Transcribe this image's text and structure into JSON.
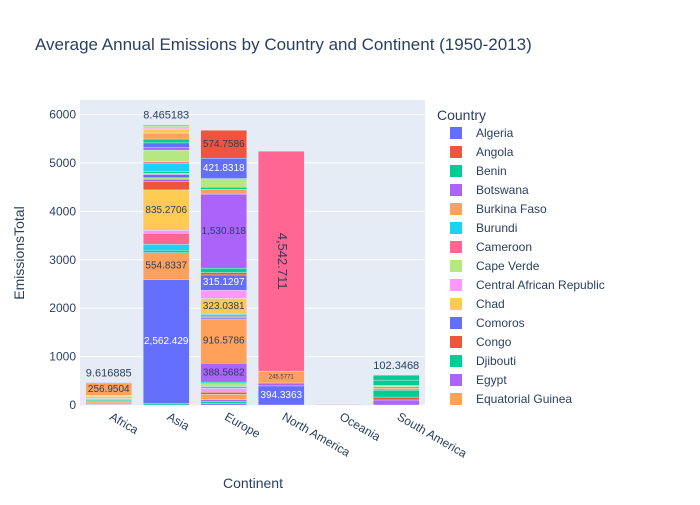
{
  "chart_data": {
    "type": "bar",
    "stacked": true,
    "title": "Average Annual Emissions by Country and Continent (1950-2013)",
    "xlabel": "Continent",
    "ylabel": "EmissionsTotal",
    "categories": [
      "Africa",
      "Asia",
      "Europe",
      "North America",
      "Oceania",
      "South America"
    ],
    "ylim": [
      0,
      6300
    ],
    "yticks": [
      0,
      1000,
      2000,
      3000,
      4000,
      5000,
      6000
    ],
    "ytick_labels": [
      "0",
      "1000",
      "2000",
      "3000",
      "4000",
      "5000",
      "6000"
    ],
    "grid": true,
    "legend_title": "Country",
    "legend_position": "right",
    "legend": [
      {
        "name": "Algeria",
        "color": "#636efa"
      },
      {
        "name": "Angola",
        "color": "#ef553b"
      },
      {
        "name": "Benin",
        "color": "#00cc96"
      },
      {
        "name": "Botswana",
        "color": "#ab63fa"
      },
      {
        "name": "Burkina Faso",
        "color": "#ffa15a"
      },
      {
        "name": "Burundi",
        "color": "#19d3f3"
      },
      {
        "name": "Cameroon",
        "color": "#ff6692"
      },
      {
        "name": "Cape Verde",
        "color": "#b6e880"
      },
      {
        "name": "Central African Republic",
        "color": "#ff97ff"
      },
      {
        "name": "Chad",
        "color": "#fecb52"
      },
      {
        "name": "Comoros",
        "color": "#636efa"
      },
      {
        "name": "Congo",
        "color": "#ef553b"
      },
      {
        "name": "Djibouti",
        "color": "#00cc96"
      },
      {
        "name": "Egypt",
        "color": "#ab63fa"
      },
      {
        "name": "Equatorial Guinea",
        "color": "#ffa15a"
      }
    ],
    "stacks": [
      {
        "category": "Africa",
        "segments": [
          {
            "value": 12,
            "color": "#636efa"
          },
          {
            "value": 10,
            "color": "#ef553b"
          },
          {
            "value": 20,
            "color": "#ab63fa"
          },
          {
            "value": 30,
            "color": "#ffa15a"
          },
          {
            "value": 25,
            "color": "#00cc96"
          },
          {
            "value": 40,
            "color": "#b6e880"
          },
          {
            "value": 30,
            "color": "#ff97ff"
          },
          {
            "value": 20,
            "color": "#fecb52"
          },
          {
            "value": 12,
            "color": "#19d3f3"
          },
          {
            "value": 256.9504,
            "color": "#ffa15a",
            "label": "256.9504"
          },
          {
            "value": 9.616885,
            "color": "#636efa"
          }
        ]
      },
      {
        "category": "Asia",
        "segments": [
          {
            "value": 30,
            "color": "#00cc96"
          },
          {
            "value": 2562.429,
            "color": "#636efa",
            "label": "2,562.429"
          },
          {
            "value": 554.8337,
            "color": "#ffa15a",
            "label": "554.8337"
          },
          {
            "value": 50,
            "color": "#00cc96"
          },
          {
            "value": 120,
            "color": "#19d3f3"
          },
          {
            "value": 230,
            "color": "#ff6692"
          },
          {
            "value": 60,
            "color": "#ff97ff"
          },
          {
            "value": 835.2706,
            "color": "#fecb52",
            "label": "835.2706"
          },
          {
            "value": 180,
            "color": "#ef553b"
          },
          {
            "value": 40,
            "color": "#ab63fa"
          },
          {
            "value": 30,
            "color": "#b6e880"
          },
          {
            "value": 70,
            "color": "#636efa"
          },
          {
            "value": 25,
            "color": "#ff97ff"
          },
          {
            "value": 30,
            "color": "#00cc96"
          },
          {
            "value": 180,
            "color": "#19d3f3"
          },
          {
            "value": 30,
            "color": "#ff6692"
          },
          {
            "value": 236.3859,
            "color": "#b6e880"
          },
          {
            "value": 60,
            "color": "#ab63fa"
          },
          {
            "value": 90,
            "color": "#636efa"
          },
          {
            "value": 80,
            "color": "#00cc96"
          },
          {
            "value": 123.4186,
            "color": "#ffa15a"
          },
          {
            "value": 70,
            "color": "#fecb52"
          },
          {
            "value": 30,
            "color": "#ff97ff"
          },
          {
            "value": 40,
            "color": "#b6e880"
          },
          {
            "value": 25,
            "color": "#19d3f3"
          },
          {
            "value": 8.465183,
            "color": "#636efa"
          }
        ]
      },
      {
        "category": "Europe",
        "segments": [
          {
            "value": 30,
            "color": "#636efa"
          },
          {
            "value": 40,
            "color": "#00cc96"
          },
          {
            "value": 40,
            "color": "#ab63fa"
          },
          {
            "value": 113.0643,
            "color": "#ffa15a"
          },
          {
            "value": 40,
            "color": "#ef553b"
          },
          {
            "value": 80,
            "color": "#ff97ff"
          },
          {
            "value": 40,
            "color": "#19d3f3"
          },
          {
            "value": 60,
            "color": "#b6e880"
          },
          {
            "value": 30,
            "color": "#00cc96"
          },
          {
            "value": 388.5682,
            "color": "#ab63fa",
            "label": "388.5682"
          },
          {
            "value": 916.5786,
            "color": "#ffa15a",
            "label": "916.5786"
          },
          {
            "value": 30,
            "color": "#636efa"
          },
          {
            "value": 20,
            "color": "#00cc96"
          },
          {
            "value": 30,
            "color": "#ef553b"
          },
          {
            "value": 20,
            "color": "#19d3f3"
          },
          {
            "value": 323.0381,
            "color": "#fecb52",
            "label": "323.0381"
          },
          {
            "value": 170,
            "color": "#ff97ff"
          },
          {
            "value": 315.1297,
            "color": "#636efa",
            "label": "315.1297"
          },
          {
            "value": 50,
            "color": "#ef553b"
          },
          {
            "value": 90,
            "color": "#00cc96"
          },
          {
            "value": 1530.818,
            "color": "#ab63fa",
            "label": "1,530.818"
          },
          {
            "value": 100,
            "color": "#ffa15a"
          },
          {
            "value": 40,
            "color": "#00cc96"
          },
          {
            "value": 180,
            "color": "#b6e880"
          },
          {
            "value": 421.8318,
            "color": "#636efa",
            "label": "421.8318"
          },
          {
            "value": 574.7586,
            "color": "#ef553b",
            "label": "574.7586"
          }
        ]
      },
      {
        "category": "North America",
        "segments": [
          {
            "value": 394.3363,
            "color": "#636efa",
            "label": "394.3363"
          },
          {
            "value": 60,
            "color": "#ab63fa"
          },
          {
            "value": 245.5771,
            "color": "#ffa15a",
            "label": "245.5771"
          },
          {
            "value": 4542.711,
            "color": "#ff6692",
            "label": "4,542.711"
          }
        ]
      },
      {
        "category": "Oceania",
        "segments": [
          {
            "value": 8,
            "color": "#ab63fa"
          },
          {
            "value": 5,
            "color": "#ef553b"
          }
        ]
      },
      {
        "category": "South America",
        "segments": [
          {
            "value": 103.7,
            "color": "#ab63fa"
          },
          {
            "value": 60,
            "color": "#ef553b"
          },
          {
            "value": 140,
            "color": "#00cc96"
          },
          {
            "value": 40,
            "color": "#ffa15a"
          },
          {
            "value": 30,
            "color": "#ff6692"
          },
          {
            "value": 30,
            "color": "#b6e880"
          },
          {
            "value": 110,
            "color": "#00cc96"
          },
          {
            "value": 102.3468,
            "color": "#00cc96"
          }
        ]
      }
    ],
    "total_labels": [
      {
        "category": "Africa",
        "text": "9.616885"
      },
      {
        "category": "Asia",
        "text": "8.465183"
      },
      {
        "category": "South America",
        "text": "102.3468"
      }
    ]
  }
}
